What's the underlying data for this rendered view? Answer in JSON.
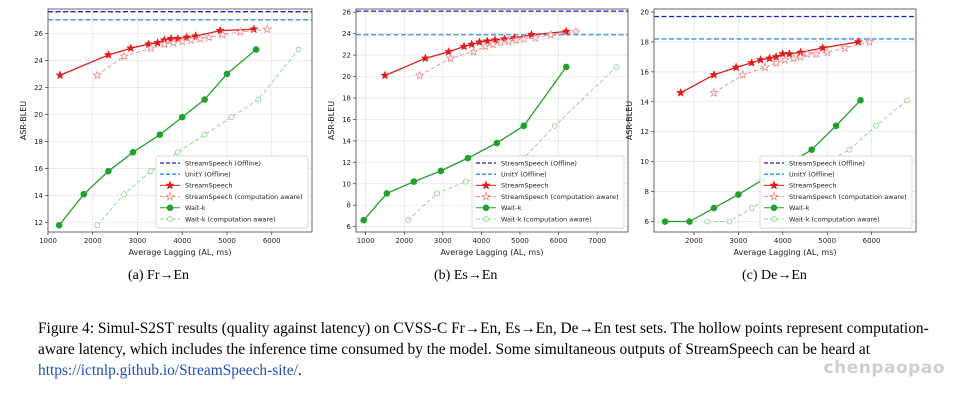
{
  "chart_data": [
    {
      "type": "line",
      "xlabel": "Average Lagging (AL, ms)",
      "ylabel": "ASR-BLEU",
      "xlim": [
        1000,
        6900
      ],
      "ylim": [
        11.3,
        27.8
      ],
      "xticks": [
        1000,
        2000,
        3000,
        4000,
        5000,
        6000
      ],
      "yticks": [
        12,
        14,
        16,
        18,
        20,
        22,
        24,
        26
      ],
      "grid": true,
      "legend_position": "bottom-right",
      "hlines": [
        {
          "name": "StreamSpeech (Offline)",
          "y": 27.6,
          "color": "#1f1fcc",
          "style": "dashed"
        },
        {
          "name": "UnitY (Offline)",
          "y": 27.0,
          "color": "#3a8fd8",
          "style": "dashed"
        }
      ],
      "series": [
        {
          "name": "StreamSpeech",
          "color": "#e41a1c",
          "marker": "star",
          "style": "solid",
          "x": [
            1270,
            2350,
            2850,
            3250,
            3450,
            3600,
            3750,
            3900,
            4100,
            4300,
            4850,
            5600
          ],
          "y": [
            22.9,
            24.4,
            24.9,
            25.2,
            25.3,
            25.5,
            25.6,
            25.6,
            25.7,
            25.8,
            26.2,
            26.3
          ]
        },
        {
          "name": "StreamSpeech (computation aware)",
          "color": "#f08a8a",
          "marker": "star-open",
          "style": "dashed",
          "x": [
            2100,
            2700,
            3300,
            3600,
            3800,
            4000,
            4200,
            4400,
            4600,
            4900,
            5300,
            5900
          ],
          "y": [
            22.9,
            24.3,
            24.9,
            25.2,
            25.3,
            25.4,
            25.5,
            25.6,
            25.7,
            25.9,
            26.1,
            26.3
          ]
        },
        {
          "name": "Wait-k",
          "color": "#22a02c",
          "marker": "circle",
          "style": "solid",
          "x": [
            1250,
            1800,
            2350,
            2900,
            3500,
            4000,
            4500,
            5000,
            5650
          ],
          "y": [
            11.8,
            14.1,
            15.8,
            17.2,
            18.5,
            19.8,
            21.1,
            23.0,
            24.8
          ]
        },
        {
          "name": "Wait-k (computation aware)",
          "color": "#8dd08d",
          "marker": "circle-open",
          "style": "dashed",
          "x": [
            2100,
            2700,
            3300,
            3900,
            4500,
            5100,
            5700,
            6600
          ],
          "y": [
            11.8,
            14.1,
            15.8,
            17.2,
            18.5,
            19.8,
            21.1,
            24.8
          ]
        }
      ]
    },
    {
      "type": "line",
      "xlabel": "Average Lagging (AL, ms)",
      "ylabel": "ASR-BLEU",
      "xlim": [
        750,
        7800
      ],
      "ylim": [
        5.5,
        26.3
      ],
      "xticks": [
        1000,
        2000,
        3000,
        4000,
        5000,
        6000,
        7000
      ],
      "yticks": [
        6,
        8,
        10,
        12,
        14,
        16,
        18,
        20,
        22,
        24,
        26
      ],
      "grid": true,
      "legend_position": "bottom-right",
      "hlines": [
        {
          "name": "StreamSpeech (Offline)",
          "y": 26.1,
          "color": "#1f1fcc",
          "style": "dashed"
        },
        {
          "name": "UnitY (Offline)",
          "y": 23.9,
          "color": "#3a8fd8",
          "style": "dashed"
        }
      ],
      "series": [
        {
          "name": "StreamSpeech",
          "color": "#e41a1c",
          "marker": "star",
          "style": "solid",
          "x": [
            1500,
            2550,
            3150,
            3550,
            3750,
            3950,
            4150,
            4350,
            4600,
            4850,
            5300,
            6200
          ],
          "y": [
            20.1,
            21.7,
            22.3,
            22.8,
            23.0,
            23.2,
            23.3,
            23.4,
            23.5,
            23.6,
            23.9,
            24.2
          ]
        },
        {
          "name": "StreamSpeech (computation aware)",
          "color": "#f08a8a",
          "marker": "star-open",
          "style": "dashed",
          "x": [
            2400,
            3200,
            3800,
            4100,
            4300,
            4500,
            4700,
            4900,
            5100,
            5400,
            5800,
            6450
          ],
          "y": [
            20.1,
            21.7,
            22.3,
            22.8,
            23.0,
            23.2,
            23.3,
            23.4,
            23.5,
            23.6,
            23.9,
            24.2
          ]
        },
        {
          "name": "Wait-k",
          "color": "#22a02c",
          "marker": "circle",
          "style": "solid",
          "x": [
            950,
            1550,
            2250,
            2950,
            3650,
            4400,
            5100,
            6200
          ],
          "y": [
            6.6,
            9.1,
            10.2,
            11.2,
            12.4,
            13.8,
            15.4,
            20.9
          ]
        },
        {
          "name": "Wait-k (computation aware)",
          "color": "#8dd08d",
          "marker": "circle-open",
          "style": "dashed",
          "x": [
            2100,
            2850,
            3600,
            4350,
            5100,
            5900,
            7500
          ],
          "y": [
            6.6,
            9.1,
            10.2,
            11.2,
            12.4,
            15.4,
            20.9
          ]
        }
      ]
    },
    {
      "type": "line",
      "xlabel": "Average Lagging (AL, ms)",
      "ylabel": "ASR-BLEU",
      "xlim": [
        1100,
        7000
      ],
      "ylim": [
        5.3,
        20.2
      ],
      "xticks": [
        2000,
        3000,
        4000,
        5000,
        6000
      ],
      "yticks": [
        6,
        8,
        10,
        12,
        14,
        16,
        18,
        20
      ],
      "grid": true,
      "legend_position": "bottom-right",
      "hlines": [
        {
          "name": "StreamSpeech (Offline)",
          "y": 19.7,
          "color": "#1f1fcc",
          "style": "dashed"
        },
        {
          "name": "UnitY (Offline)",
          "y": 18.2,
          "color": "#3a8fd8",
          "style": "dashed"
        }
      ],
      "series": [
        {
          "name": "StreamSpeech",
          "color": "#e41a1c",
          "marker": "star",
          "style": "solid",
          "x": [
            1700,
            2450,
            2950,
            3300,
            3500,
            3700,
            3850,
            4000,
            4150,
            4400,
            4900,
            5700
          ],
          "y": [
            14.6,
            15.8,
            16.3,
            16.6,
            16.8,
            16.9,
            17.0,
            17.2,
            17.2,
            17.3,
            17.6,
            18.0
          ]
        },
        {
          "name": "StreamSpeech (computation aware)",
          "color": "#f08a8a",
          "marker": "star-open",
          "style": "dashed",
          "x": [
            2450,
            3100,
            3600,
            3850,
            4050,
            4250,
            4400,
            4550,
            4750,
            5000,
            5400,
            5950
          ],
          "y": [
            14.6,
            15.8,
            16.3,
            16.6,
            16.8,
            16.9,
            17.0,
            17.2,
            17.2,
            17.3,
            17.6,
            18.0
          ]
        },
        {
          "name": "Wait-k",
          "color": "#22a02c",
          "marker": "circle",
          "style": "solid",
          "x": [
            1350,
            1900,
            2450,
            3000,
            3550,
            4100,
            4650,
            5200,
            5750
          ],
          "y": [
            6.0,
            6.0,
            6.9,
            7.8,
            8.8,
            9.8,
            10.8,
            12.4,
            14.1
          ]
        },
        {
          "name": "Wait-k (computation aware)",
          "color": "#8dd08d",
          "marker": "circle-open",
          "style": "dashed",
          "x": [
            2300,
            2800,
            3300,
            3800,
            4300,
            4900,
            5500,
            6100,
            6800
          ],
          "y": [
            6.0,
            6.0,
            6.9,
            7.8,
            8.8,
            9.8,
            10.8,
            12.4,
            14.1
          ]
        }
      ]
    }
  ],
  "subcaptions": [
    "(a)  Fr→En",
    "(b)  Es→En",
    "(c)  De→En"
  ],
  "caption": {
    "text": "Figure 4: Simul-S2ST results (quality against latency) on CVSS-C Fr→En, Es→En, De→En test sets. The hollow points represent computation-aware latency, which includes the inference time consumed by the model. Some simultaneous outputs of StreamSpeech can be heard at ",
    "link": "https://ictnlp.github.io/StreamSpeech-site/",
    "end": "."
  },
  "watermark": "chenpaopao"
}
